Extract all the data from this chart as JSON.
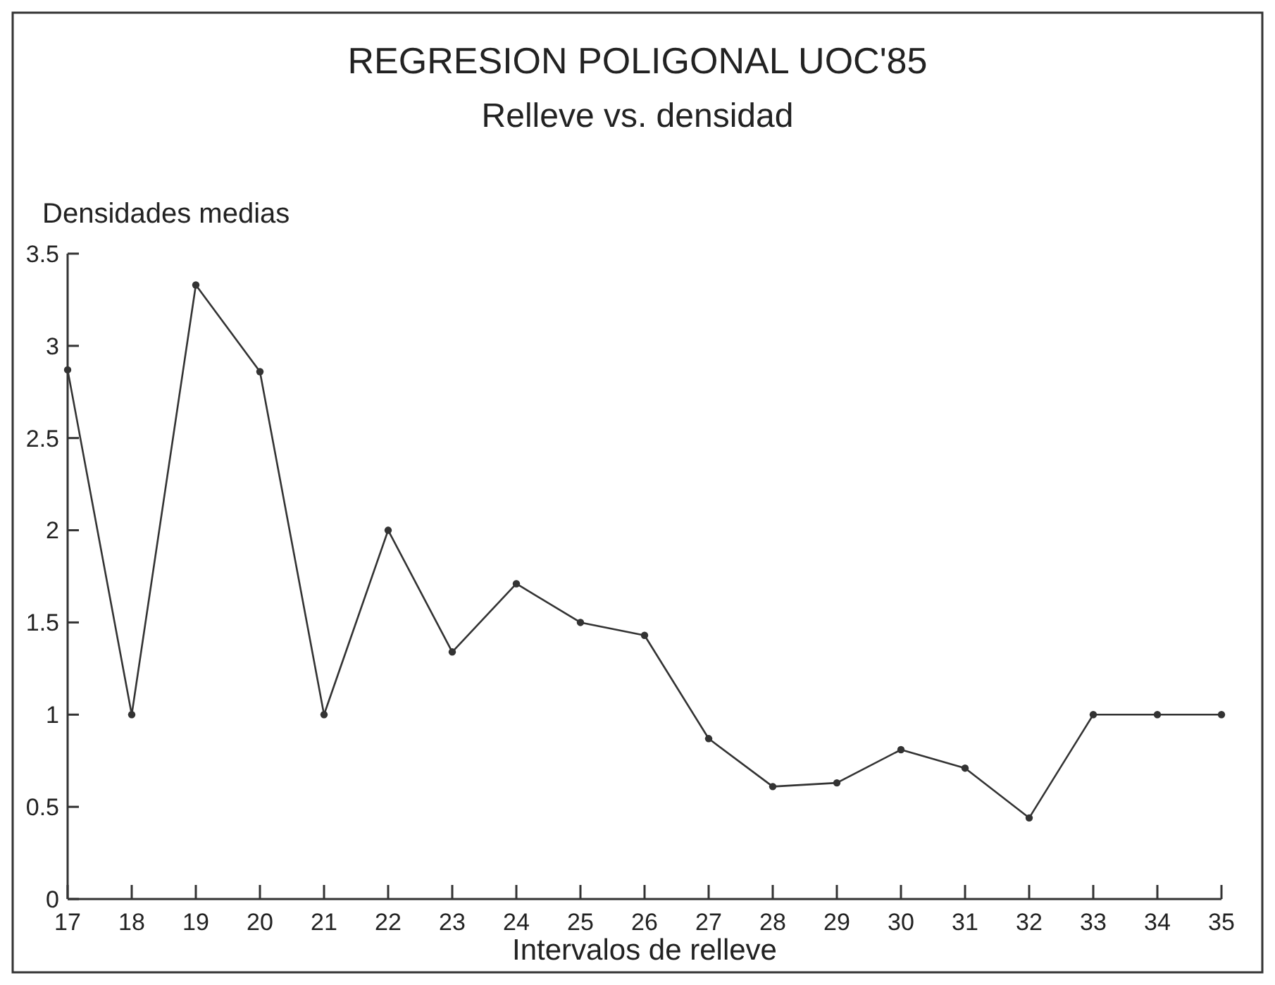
{
  "chart_data": {
    "type": "line",
    "title": "REGRESION POLIGONAL UOC'85",
    "subtitle": "Relleve vs. densidad",
    "xlabel": "Intervalos de relleve",
    "ylabel": "Densidades medias",
    "x": [
      17,
      18,
      19,
      20,
      21,
      22,
      23,
      24,
      25,
      26,
      27,
      28,
      29,
      30,
      31,
      32,
      33,
      34,
      35
    ],
    "series": [
      {
        "color": "#333333",
        "values": [
          2.87,
          1.0,
          3.33,
          2.86,
          1.0,
          2.0,
          1.34,
          1.71,
          1.5,
          1.43,
          0.87,
          0.61,
          0.63,
          0.81,
          0.71,
          0.44,
          1.0,
          1.0,
          1.0
        ]
      }
    ],
    "xlim": [
      17,
      35
    ],
    "xticks": [
      17,
      18,
      19,
      20,
      21,
      22,
      23,
      24,
      25,
      26,
      27,
      28,
      29,
      30,
      31,
      32,
      33,
      34,
      35
    ],
    "ylim": [
      0,
      3.5
    ],
    "yticks": [
      0,
      0.5,
      1,
      1.5,
      2,
      2.5,
      3,
      3.5
    ],
    "marker": "circle",
    "line_style": "solid",
    "grid": false
  }
}
